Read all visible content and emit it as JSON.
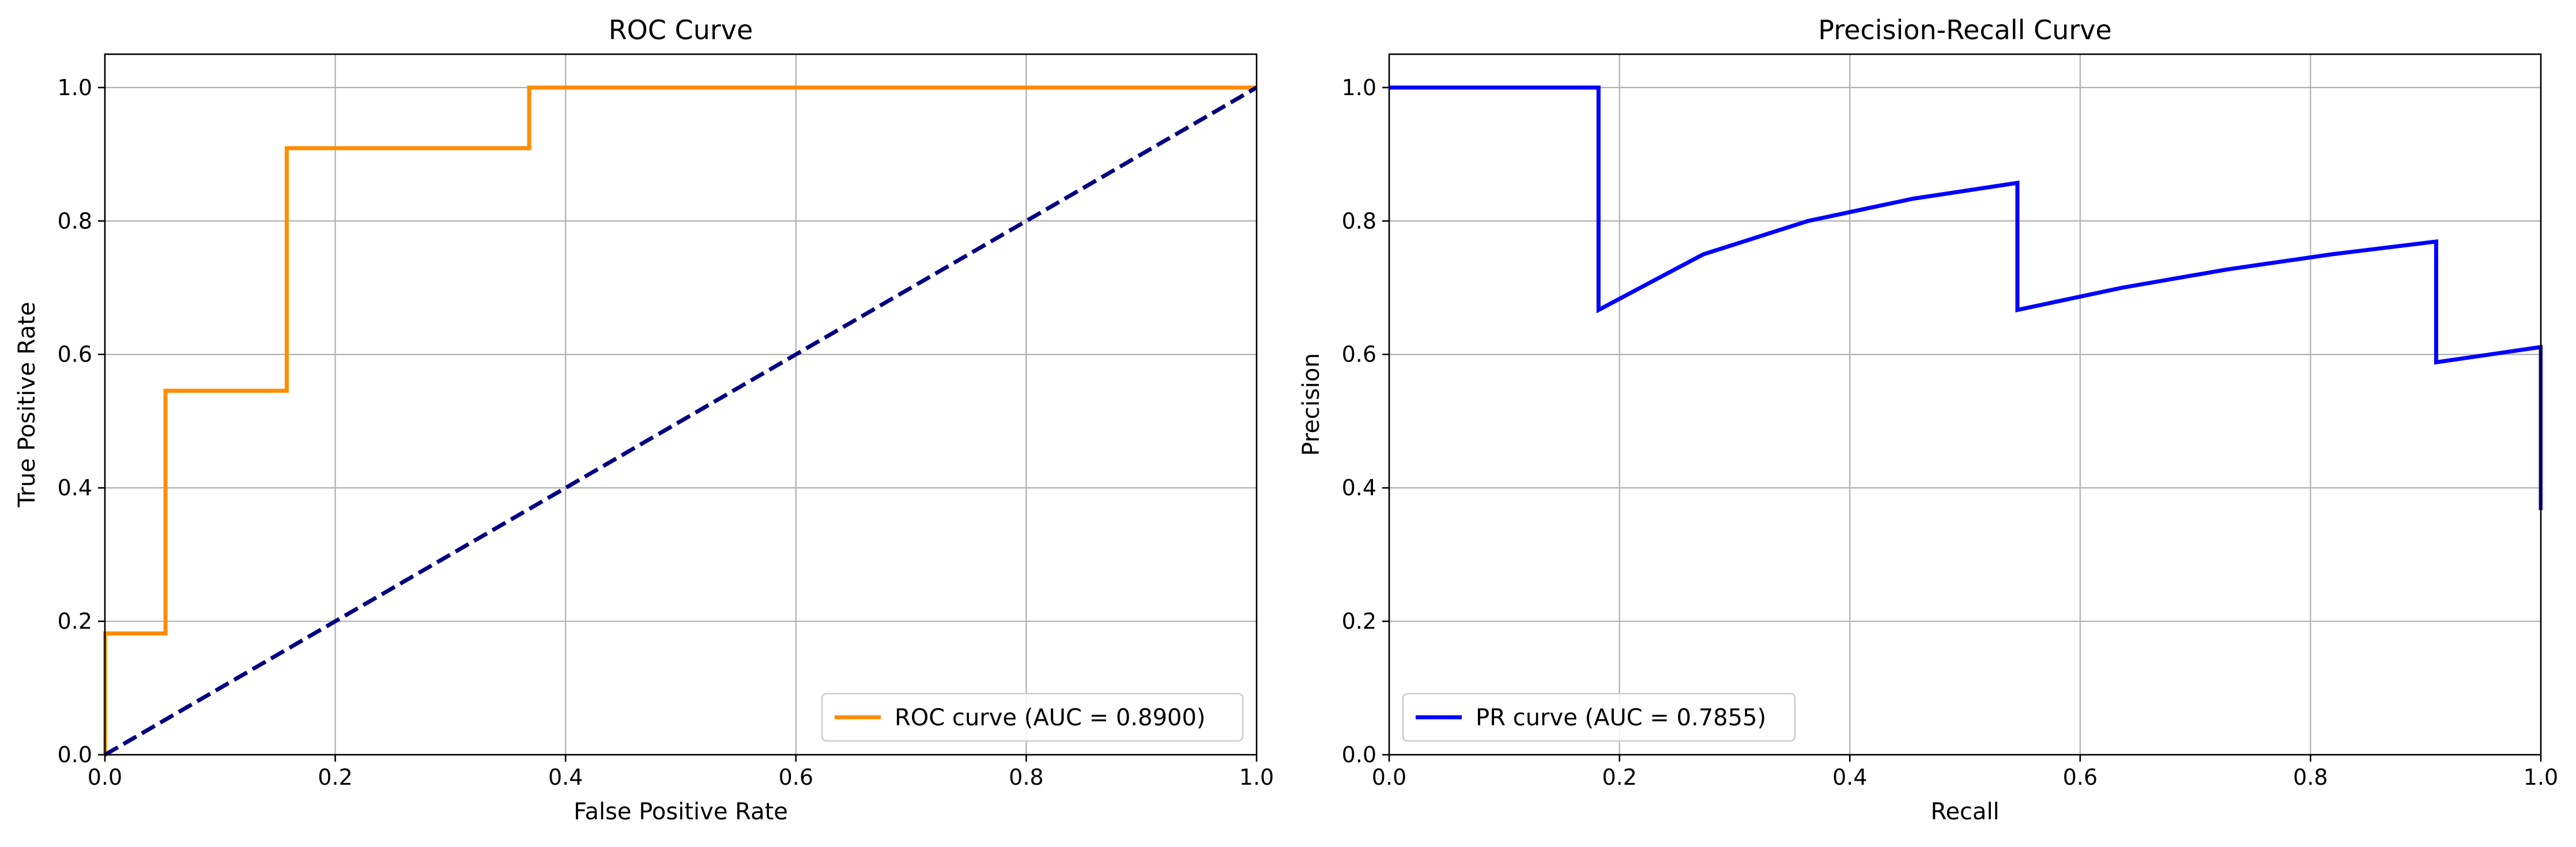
{
  "chart_data": [
    {
      "type": "line",
      "title": "ROC Curve",
      "xlabel": "False Positive Rate",
      "ylabel": "True Positive Rate",
      "xlim": [
        0,
        1
      ],
      "ylim": [
        0,
        1.05
      ],
      "xticks": [
        "0.0",
        "0.2",
        "0.4",
        "0.6",
        "0.8",
        "1.0"
      ],
      "yticks": [
        "0.0",
        "0.2",
        "0.4",
        "0.6",
        "0.8",
        "1.0"
      ],
      "grid": true,
      "legend_position": "lower-right",
      "series": [
        {
          "name": "ROC curve (AUC = 0.8900)",
          "color": "#ff8c00",
          "style": "solid",
          "in_legend": true,
          "x": [
            0,
            0,
            0.0526,
            0.0526,
            0.1579,
            0.1579,
            0.3684,
            0.3684,
            1.0
          ],
          "y": [
            0,
            0.1818,
            0.1818,
            0.5455,
            0.5455,
            0.9091,
            0.9091,
            1.0,
            1.0
          ]
        },
        {
          "name": "",
          "color": "#000080",
          "style": "dashed",
          "in_legend": false,
          "x": [
            0,
            1
          ],
          "y": [
            0,
            1
          ]
        }
      ]
    },
    {
      "type": "line",
      "title": "Precision-Recall Curve",
      "xlabel": "Recall",
      "ylabel": "Precision",
      "xlim": [
        0,
        1
      ],
      "ylim": [
        0,
        1.05
      ],
      "xticks": [
        "0.0",
        "0.2",
        "0.4",
        "0.6",
        "0.8",
        "1.0"
      ],
      "yticks": [
        "0.0",
        "0.2",
        "0.4",
        "0.6",
        "0.8",
        "1.0"
      ],
      "grid": true,
      "legend_position": "lower-left",
      "series": [
        {
          "name": "PR curve (AUC = 0.7855)",
          "color": "#0000ff",
          "style": "solid",
          "in_legend": true,
          "x": [
            0,
            0.1818,
            0.1818,
            0.2727,
            0.3636,
            0.4545,
            0.5455,
            0.5455,
            0.6364,
            0.7273,
            0.8182,
            0.9091,
            0.9091,
            1.0,
            1.0
          ],
          "y": [
            1.0,
            1.0,
            0.6667,
            0.75,
            0.8,
            0.8333,
            0.8571,
            0.6667,
            0.7,
            0.7273,
            0.75,
            0.7692,
            0.5882,
            0.6111,
            0.3667
          ]
        }
      ]
    }
  ]
}
